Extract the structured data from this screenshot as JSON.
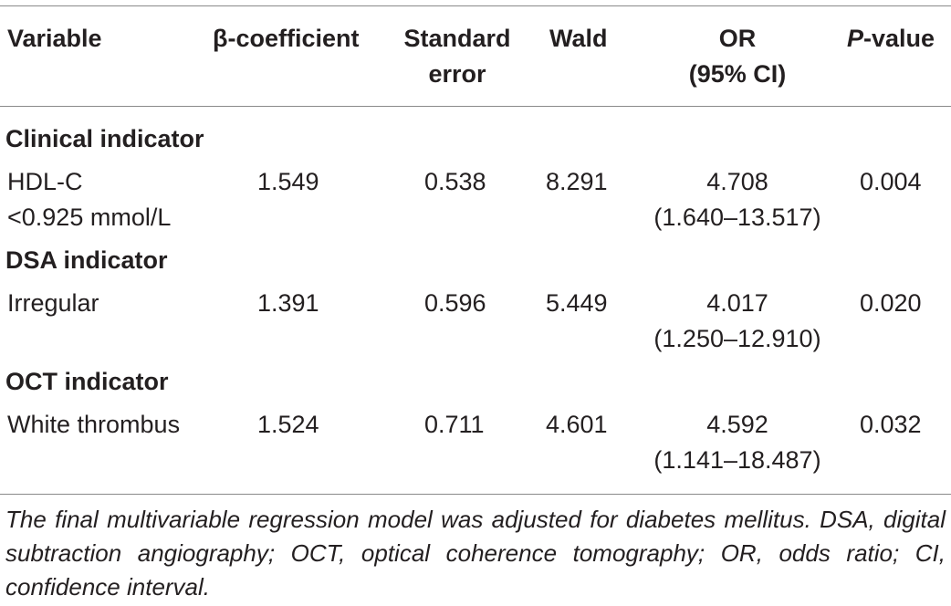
{
  "header": {
    "variable": "Variable",
    "beta": "β-coefficient",
    "se_line1": "Standard",
    "se_line2": "error",
    "wald": "Wald",
    "or_line1": "OR",
    "or_line2": "(95% CI)",
    "p_italic": "P",
    "p_rest": "-value"
  },
  "sections": {
    "clinical": "Clinical indicator",
    "dsa": "DSA indicator",
    "oct": "OCT indicator"
  },
  "rows": [
    {
      "variable_line1": "HDL-C",
      "variable_line2": "<0.925 mmol/L",
      "beta": "1.549",
      "se": "0.538",
      "wald": "8.291",
      "or": "4.708",
      "ci": "(1.640–13.517)",
      "p": "0.004"
    },
    {
      "variable_line1": "Irregular",
      "variable_line2": "",
      "beta": "1.391",
      "se": "0.596",
      "wald": "5.449",
      "or": "4.017",
      "ci": "(1.250–12.910)",
      "p": "0.020"
    },
    {
      "variable_line1": "White thrombus",
      "variable_line2": "",
      "beta": "1.524",
      "se": "0.711",
      "wald": "4.601",
      "or": "4.592",
      "ci": "(1.141–18.487)",
      "p": "0.032"
    }
  ],
  "footnote": "The final multivariable regression model was adjusted for diabetes mellitus. DSA, digital subtraction angiography; OCT, optical coherence tomography; OR, odds ratio; CI, confidence interval."
}
